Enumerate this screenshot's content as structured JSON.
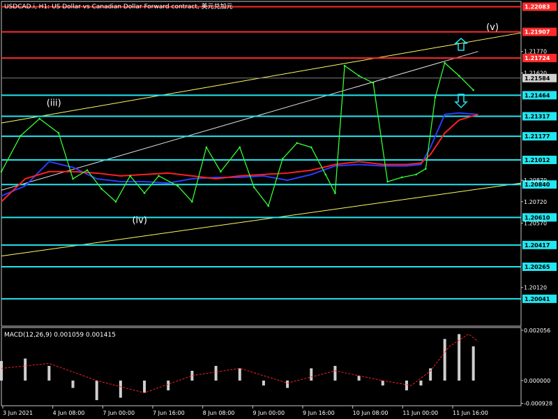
{
  "chart_data": {
    "type": "line",
    "title": "USDCAD.i, H1: US Dollar vs Canadian Dollar Forward contract, 美元兑加元",
    "symbol": "USDCAD.i",
    "timeframe": "H1",
    "price_axis": {
      "ticks": [
        "1.21770",
        "1.21620",
        "1.20870",
        "1.20720",
        "1.20570",
        "1.20120"
      ],
      "ylim": [
        1.1985,
        1.2212
      ]
    },
    "current_price": "1.21584",
    "resistance_levels": [
      {
        "label": "1.22083",
        "value": 1.22083,
        "color": "#ff2a2a"
      },
      {
        "label": "1.21907",
        "value": 1.21907,
        "color": "#ff2a2a"
      },
      {
        "label": "1.21724",
        "value": 1.21724,
        "color": "#ff2a2a"
      }
    ],
    "support_levels": [
      {
        "label": "1.21464",
        "value": 1.21464,
        "color": "#22e6f0"
      },
      {
        "label": "1.21317",
        "value": 1.21317,
        "color": "#22e6f0"
      },
      {
        "label": "1.21177",
        "value": 1.21177,
        "color": "#22e6f0"
      },
      {
        "label": "1.21012",
        "value": 1.21012,
        "color": "#22e6f0"
      },
      {
        "label": "1.20840",
        "value": 1.2084,
        "color": "#22e6f0"
      },
      {
        "label": "1.20610",
        "value": 1.2061,
        "color": "#22e6f0"
      },
      {
        "label": "1.20417",
        "value": 1.20417,
        "color": "#22e6f0"
      },
      {
        "label": "1.20265",
        "value": 1.20265,
        "color": "#22e6f0"
      },
      {
        "label": "1.20041",
        "value": 1.20041,
        "color": "#22e6f0"
      }
    ],
    "wave_labels": [
      {
        "text": "(iii)",
        "time_index": 1.1,
        "price": 1.2139
      },
      {
        "text": "(iv)",
        "time_index": 2.9,
        "price": 1.2057
      },
      {
        "text": "(v)",
        "time_index": 10.3,
        "price": 1.2192
      }
    ],
    "x_ticks": [
      "3 Jun 2021",
      "4 Jun 08:00",
      "7 Jun 00:00",
      "7 Jun 16:00",
      "8 Jun 08:00",
      "9 Jun 00:00",
      "9 Jun 16:00",
      "10 Jun 08:00",
      "11 Jun 00:00",
      "11 Jun 16:00"
    ],
    "price_series": {
      "name": "",
      "x": [
        0,
        0.4,
        0.8,
        1.2,
        1.5,
        1.8,
        2.1,
        2.4,
        2.7,
        3.0,
        3.3,
        3.7,
        4.0,
        4.3,
        4.6,
        5.0,
        5.3,
        5.6,
        5.9,
        6.2,
        6.5,
        6.8,
        7.0,
        7.2,
        7.5,
        7.8,
        8.1,
        8.4,
        8.7,
        8.9,
        9.1,
        9.3,
        9.6,
        9.9
      ],
      "values": [
        1.2093,
        1.2118,
        1.213,
        1.212,
        1.2088,
        1.2094,
        1.2081,
        1.2072,
        1.209,
        1.2078,
        1.209,
        1.2083,
        1.2072,
        1.211,
        1.2093,
        1.211,
        1.2082,
        1.2069,
        1.2102,
        1.2113,
        1.211,
        1.2091,
        1.2078,
        1.2167,
        1.216,
        1.2155,
        1.2086,
        1.2089,
        1.2091,
        1.2095,
        1.2145,
        1.2169,
        1.216,
        1.215
      ]
    },
    "ma_red": {
      "x": [
        0,
        0.5,
        1.0,
        1.5,
        2.0,
        2.5,
        3.0,
        3.5,
        4.0,
        4.5,
        5.0,
        5.5,
        6.0,
        6.5,
        7.0,
        7.5,
        8.0,
        8.5,
        8.8,
        9.0,
        9.3,
        9.6,
        10.0
      ],
      "values": [
        1.2072,
        1.2088,
        1.2093,
        1.2093,
        1.2092,
        1.209,
        1.2091,
        1.2092,
        1.209,
        1.2088,
        1.209,
        1.2091,
        1.2092,
        1.2094,
        1.2098,
        1.21,
        1.2098,
        1.2098,
        1.2099,
        1.2105,
        1.212,
        1.2129,
        1.2133
      ]
    },
    "ma_blue": {
      "x": [
        0,
        0.5,
        1.0,
        1.5,
        2.0,
        2.5,
        3.0,
        3.5,
        4.0,
        4.5,
        5.0,
        5.5,
        6.0,
        6.5,
        7.0,
        7.5,
        8.0,
        8.5,
        8.8,
        9.0,
        9.3,
        9.6,
        10.0
      ],
      "values": [
        1.2076,
        1.2083,
        1.21,
        1.2096,
        1.2088,
        1.2086,
        1.2086,
        1.2085,
        1.2088,
        1.2089,
        1.2089,
        1.209,
        1.2087,
        1.2091,
        1.2097,
        1.2098,
        1.2097,
        1.2097,
        1.2098,
        1.211,
        1.2133,
        1.2134,
        1.2133
      ]
    },
    "channel_lines": [
      {
        "x": [
          0,
          10.9
        ],
        "values": [
          1.2127,
          1.219
        ],
        "color": "#ffff66"
      },
      {
        "x": [
          0,
          10.9
        ],
        "values": [
          1.2034,
          1.2085
        ],
        "color": "#ffff66"
      },
      {
        "x": [
          0,
          10.0
        ],
        "values": [
          1.208,
          1.2177
        ],
        "color": "#e0e0e0"
      }
    ],
    "macd": {
      "label": "MACD(12,26,9) 0.001059 0.001415",
      "ticks": [
        "0.002056",
        "0.000000",
        "-0.000928"
      ],
      "ylim": [
        -0.001,
        0.00214
      ],
      "hist_x": [
        0,
        0.5,
        1.0,
        1.5,
        2.0,
        2.5,
        3.0,
        3.5,
        4.0,
        4.5,
        5.0,
        5.5,
        6.0,
        6.5,
        7.0,
        7.5,
        8.0,
        8.5,
        8.8,
        9.0,
        9.3,
        9.6,
        9.9
      ],
      "histogram": [
        0.0008,
        0.0009,
        0.0006,
        -0.0003,
        -0.0008,
        -0.0007,
        -0.0005,
        -0.0004,
        0.0004,
        0.0006,
        0.0005,
        -0.0002,
        -0.0003,
        0.0005,
        0.0006,
        0.0002,
        -0.0002,
        -0.0004,
        -0.0002,
        0.0005,
        0.0017,
        0.0019,
        0.0014
      ],
      "signal_x": [
        0,
        1,
        2,
        3,
        4,
        5,
        6,
        7,
        8,
        8.6,
        9.0,
        9.4,
        9.8,
        10.0
      ],
      "signal": [
        0.0005,
        0.0007,
        0.0,
        -0.0005,
        0.0002,
        0.0005,
        -0.0001,
        0.0004,
        0.0,
        -0.0002,
        0.0004,
        0.0014,
        0.0019,
        0.0016
      ]
    }
  }
}
